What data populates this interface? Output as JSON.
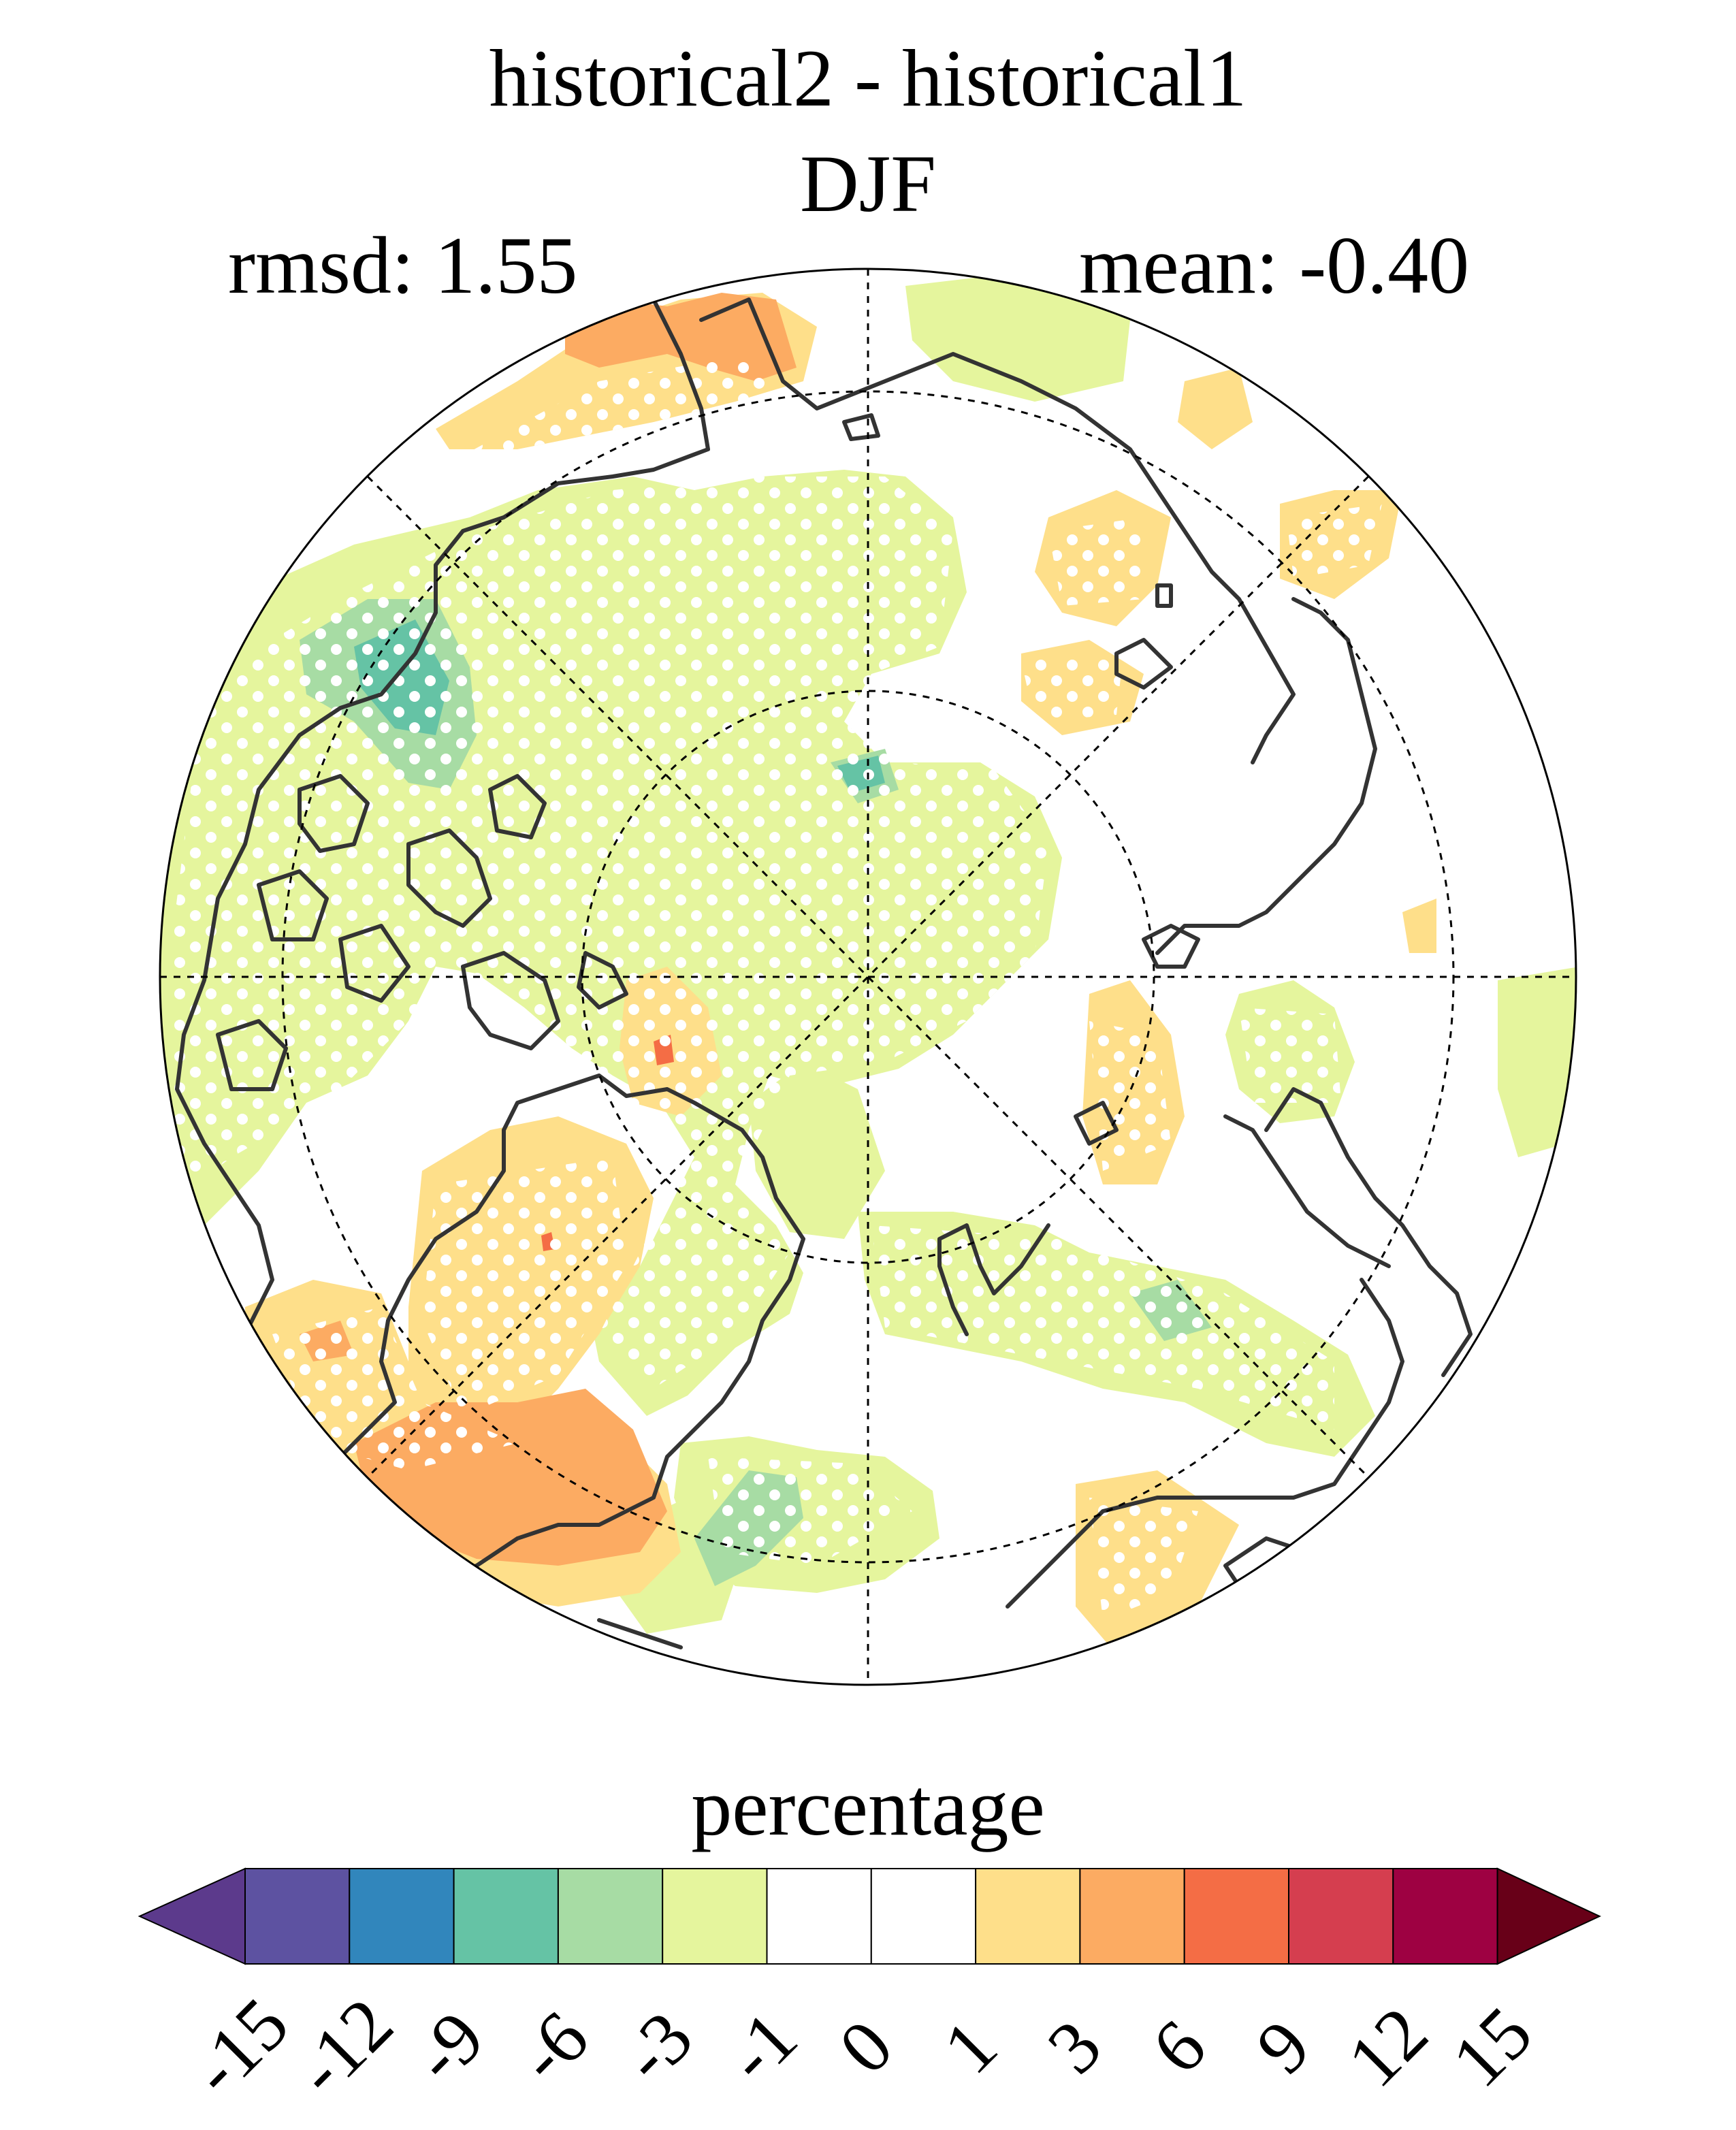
{
  "title": "historical2 - historical1",
  "season": "DJF",
  "stats": {
    "rmsd": "rmsd: 1.55",
    "mean": "mean: -0.40"
  },
  "colorbar": {
    "label": "percentage",
    "ticks": [
      "-15",
      "-12",
      "-9",
      "-6",
      "-3",
      "-1",
      "0",
      "1",
      "3",
      "6",
      "9",
      "12",
      "15"
    ],
    "colors": [
      "#5c3a8c",
      "#5d52a1",
      "#3186bc",
      "#65c3a5",
      "#a7dca4",
      "#e5f59d",
      "#ffffff",
      "#ffffff",
      "#fedf8a",
      "#fcab62",
      "#f46d45",
      "#d53e4f",
      "#9e0142",
      "#680018"
    ],
    "extend": "both"
  },
  "map": {
    "projection": "north polar stereographic",
    "stippling": "white dots mark significant regions",
    "colors": {
      "light_green": "#e5f59d",
      "mid_green": "#a7dca4",
      "teal": "#65c3a5",
      "light_orange": "#fedf8a",
      "orange": "#fcab62",
      "red_orange": "#f46d45",
      "coast": "#333333"
    }
  }
}
